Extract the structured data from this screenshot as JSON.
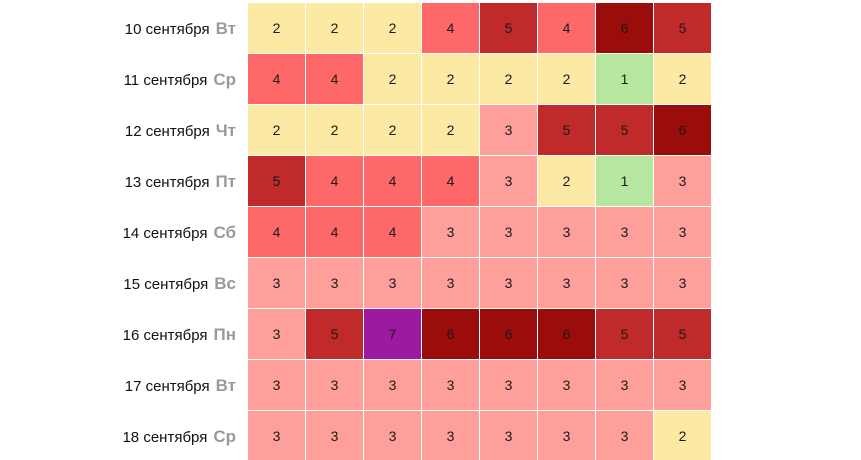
{
  "rows": [
    {
      "date": "10 сентября",
      "dow": "Вт",
      "values": [
        2,
        2,
        2,
        4,
        5,
        4,
        6,
        5
      ]
    },
    {
      "date": "11 сентября",
      "dow": "Ср",
      "values": [
        4,
        4,
        2,
        2,
        2,
        2,
        1,
        2
      ]
    },
    {
      "date": "12 сентября",
      "dow": "Чт",
      "values": [
        2,
        2,
        2,
        2,
        3,
        5,
        5,
        6
      ]
    },
    {
      "date": "13 сентября",
      "dow": "Пт",
      "values": [
        5,
        4,
        4,
        4,
        3,
        2,
        1,
        3
      ]
    },
    {
      "date": "14 сентября",
      "dow": "Сб",
      "values": [
        4,
        4,
        4,
        3,
        3,
        3,
        3,
        3
      ]
    },
    {
      "date": "15 сентября",
      "dow": "Вс",
      "values": [
        3,
        3,
        3,
        3,
        3,
        3,
        3,
        3
      ]
    },
    {
      "date": "16 сентября",
      "dow": "Пн",
      "values": [
        3,
        5,
        7,
        6,
        6,
        6,
        5,
        5
      ]
    },
    {
      "date": "17 сентября",
      "dow": "Вт",
      "values": [
        3,
        3,
        3,
        3,
        3,
        3,
        3,
        3
      ]
    },
    {
      "date": "18 сентября",
      "dow": "Ср",
      "values": [
        3,
        3,
        3,
        3,
        3,
        3,
        3,
        2
      ]
    }
  ],
  "level_colors": {
    "1": "#b5e7a0",
    "2": "#fbe9a4",
    "3": "#ff9f9c",
    "4": "#ff6868",
    "5": "#c02a2a",
    "6": "#9b0d0a",
    "7": "#9b1aa0"
  }
}
